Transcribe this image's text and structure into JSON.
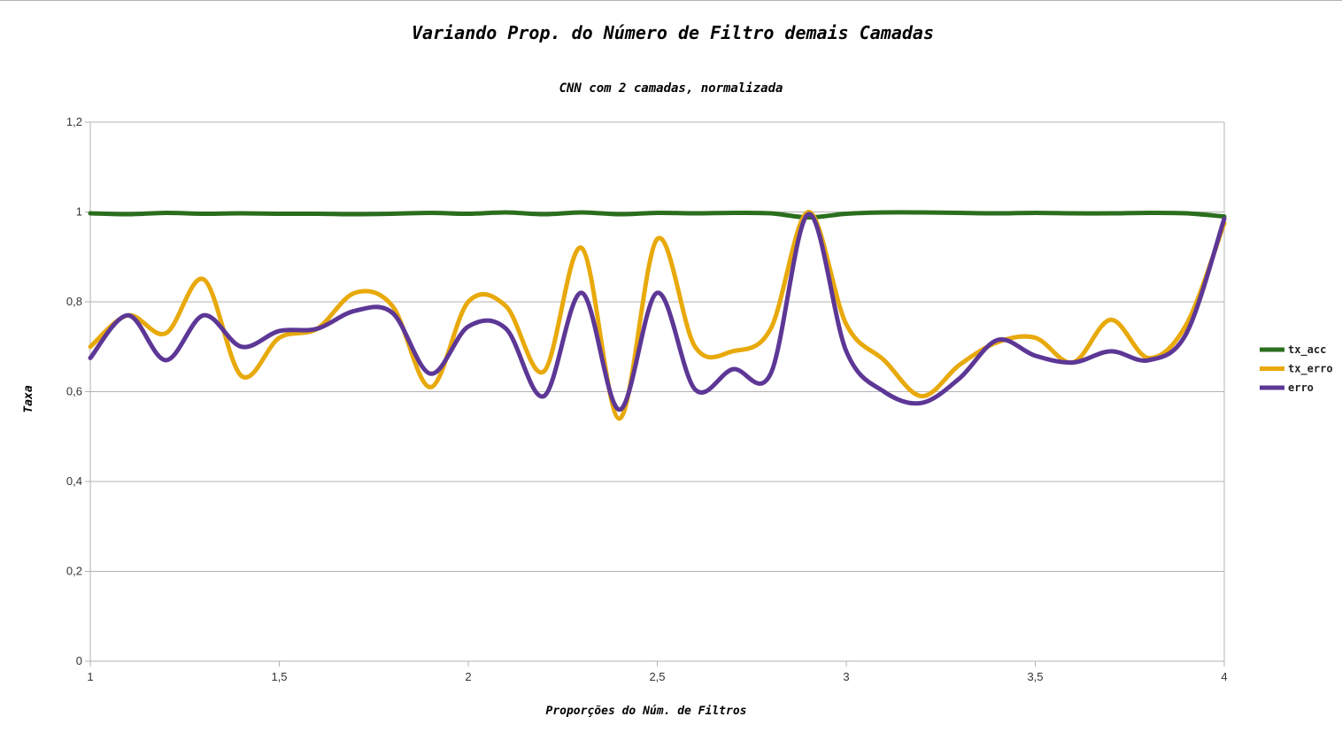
{
  "chart_data": {
    "type": "line",
    "title": "Variando Prop. do Número de Filtro demais Camadas",
    "subtitle": "CNN com 2 camadas, normalizada",
    "xlabel": "Proporções do Núm. de Filtros",
    "ylabel": "Taxa",
    "xlim": [
      1,
      4
    ],
    "ylim": [
      0,
      1.2
    ],
    "x_ticks": [
      "1",
      "1,5",
      "2",
      "2,5",
      "3",
      "3,5",
      "4"
    ],
    "x_tick_values": [
      1,
      1.5,
      2,
      2.5,
      3,
      3.5,
      4
    ],
    "y_ticks": [
      "0",
      "0,2",
      "0,4",
      "0,6",
      "0,8",
      "1",
      "1,2"
    ],
    "y_tick_values": [
      0,
      0.2,
      0.4,
      0.6,
      0.8,
      1.0,
      1.2
    ],
    "grid": true,
    "smooth": true,
    "legend_position": "right",
    "x": [
      1.0,
      1.1,
      1.2,
      1.3,
      1.4,
      1.5,
      1.6,
      1.7,
      1.8,
      1.9,
      2.0,
      2.1,
      2.2,
      2.3,
      2.4,
      2.5,
      2.6,
      2.7,
      2.8,
      2.9,
      3.0,
      3.1,
      3.2,
      3.3,
      3.4,
      3.5,
      3.6,
      3.7,
      3.8,
      3.9,
      4.0
    ],
    "series": [
      {
        "name": "tx_acc",
        "color": "#2a6e1e",
        "values": [
          0.997,
          0.995,
          0.998,
          0.996,
          0.997,
          0.996,
          0.996,
          0.995,
          0.996,
          0.998,
          0.996,
          0.999,
          0.995,
          0.999,
          0.995,
          0.998,
          0.997,
          0.998,
          0.997,
          0.988,
          0.996,
          0.999,
          0.999,
          0.998,
          0.997,
          0.998,
          0.997,
          0.997,
          0.998,
          0.997,
          0.99
        ]
      },
      {
        "name": "tx_erro",
        "color": "#e8a90b",
        "values": [
          0.7,
          0.77,
          0.73,
          0.85,
          0.635,
          0.72,
          0.74,
          0.82,
          0.79,
          0.61,
          0.8,
          0.79,
          0.645,
          0.92,
          0.54,
          0.94,
          0.7,
          0.69,
          0.74,
          1.0,
          0.75,
          0.67,
          0.59,
          0.66,
          0.71,
          0.72,
          0.665,
          0.76,
          0.675,
          0.75,
          0.975
        ]
      },
      {
        "name": "erro",
        "color": "#5d3796",
        "values": [
          0.675,
          0.77,
          0.67,
          0.77,
          0.7,
          0.735,
          0.74,
          0.78,
          0.775,
          0.64,
          0.745,
          0.74,
          0.59,
          0.82,
          0.56,
          0.82,
          0.605,
          0.65,
          0.64,
          0.995,
          0.69,
          0.6,
          0.575,
          0.63,
          0.715,
          0.68,
          0.665,
          0.69,
          0.67,
          0.73,
          0.985
        ]
      }
    ]
  }
}
